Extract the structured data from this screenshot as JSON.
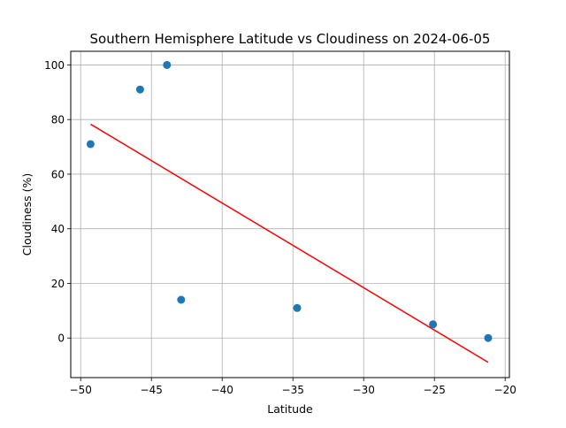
{
  "chart_data": {
    "type": "scatter",
    "title": "Southern Hemisphere Latitude vs Cloudiness on 2024-06-05",
    "xlabel": "Latitude",
    "ylabel": "Cloudiness (%)",
    "xlim": [
      -50.7,
      -19.7
    ],
    "ylim": [
      -14.5,
      105
    ],
    "xticks": [
      -50,
      -45,
      -40,
      -35,
      -30,
      -25,
      -20
    ],
    "yticks": [
      0,
      20,
      40,
      60,
      80,
      100
    ],
    "grid": true,
    "series": [
      {
        "points": [
          {
            "x": -49.3,
            "y": 71
          },
          {
            "x": -45.8,
            "y": 91
          },
          {
            "x": -43.9,
            "y": 100
          },
          {
            "x": -42.9,
            "y": 14
          },
          {
            "x": -34.7,
            "y": 11
          },
          {
            "x": -25.1,
            "y": 5
          },
          {
            "x": -21.2,
            "y": 0
          }
        ],
        "color": "#1f77b4"
      }
    ],
    "regression_line": {
      "points": [
        {
          "x": -49.3,
          "y": 78.3
        },
        {
          "x": -21.2,
          "y": -8.9
        }
      ],
      "color": "#ff0000"
    }
  }
}
